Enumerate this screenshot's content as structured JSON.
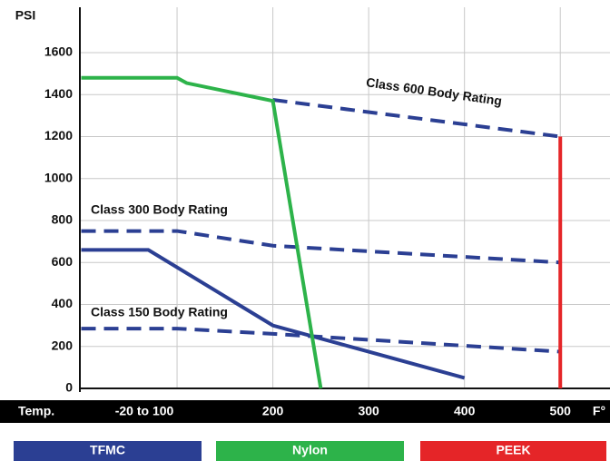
{
  "chart_data": {
    "type": "line",
    "y_label": "PSI",
    "x_label": "Temp.",
    "x_unit": "F°",
    "xlim": [
      0,
      550
    ],
    "ylim": [
      0,
      1600
    ],
    "xticks": [
      {
        "value": 100,
        "label": "-20 to 100"
      },
      200,
      300,
      400,
      500
    ],
    "yticks": [
      0,
      200,
      400,
      600,
      800,
      1000,
      1200,
      1400,
      1600
    ],
    "grid": true,
    "series": [
      {
        "name": "TFMC",
        "color": "#2b3f93",
        "x": [
          0,
          70,
          200,
          400
        ],
        "values": [
          660,
          660,
          300,
          50
        ]
      },
      {
        "name": "Nylon",
        "color": "#2db34a",
        "x": [
          0,
          100,
          110,
          200,
          250
        ],
        "values": [
          1480,
          1480,
          1455,
          1370,
          0
        ]
      },
      {
        "name": "PEEK",
        "color": "#e52528",
        "x": [
          500,
          500
        ],
        "values": [
          0,
          1200
        ]
      }
    ],
    "reference_lines": [
      {
        "label": "Class 600 Body Rating",
        "color": "#2b3f93",
        "x": [
          200,
          500
        ],
        "values": [
          1375,
          1200
        ]
      },
      {
        "label": "Class 300 Body Rating",
        "color": "#2b3f93",
        "x": [
          0,
          100,
          200,
          500
        ],
        "values": [
          750,
          750,
          680,
          600
        ]
      },
      {
        "label": "Class 150 Body Rating",
        "color": "#2b3f93",
        "x": [
          0,
          100,
          200,
          500
        ],
        "values": [
          285,
          285,
          260,
          175
        ]
      }
    ]
  }
}
